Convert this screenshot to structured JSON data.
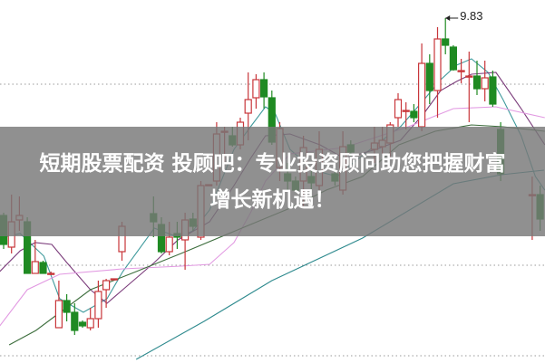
{
  "chart_data": {
    "type": "candlestick",
    "title": "",
    "xlabel": "",
    "ylabel": "",
    "ylim": [
      7.925,
      9.93
    ],
    "grid": "horizontal dotted",
    "colors": {
      "up": "#c8363a",
      "down": "#1f8a22",
      "grid": "#9a9a9a"
    },
    "candles": [
      {
        "i": 0,
        "o": 8.74,
        "h": 8.755,
        "l": 8.555,
        "c": 8.58
      },
      {
        "i": 1,
        "o": 8.565,
        "h": 8.855,
        "l": 8.53,
        "c": 8.705
      },
      {
        "i": 2,
        "o": 8.715,
        "h": 8.845,
        "l": 8.655,
        "c": 8.74
      },
      {
        "i": 3,
        "o": 8.705,
        "h": 8.73,
        "l": 8.42,
        "c": 8.42
      },
      {
        "i": 4,
        "o": 8.42,
        "h": 8.605,
        "l": 8.42,
        "c": 8.485
      },
      {
        "i": 5,
        "o": 8.48,
        "h": 8.49,
        "l": 8.42,
        "c": 8.42
      },
      {
        "i": 6,
        "o": 8.42,
        "h": 8.43,
        "l": 8.41,
        "c": 8.42
      },
      {
        "i": 7,
        "o": 8.12,
        "h": 8.38,
        "l": 8.12,
        "c": 8.27
      },
      {
        "i": 8,
        "o": 8.27,
        "h": 8.305,
        "l": 8.155,
        "c": 8.205
      },
      {
        "i": 9,
        "o": 8.205,
        "h": 8.255,
        "l": 8.08,
        "c": 8.105
      },
      {
        "i": 10,
        "o": 8.15,
        "h": 8.16,
        "l": 8.12,
        "c": 8.13
      },
      {
        "i": 11,
        "o": 8.12,
        "h": 8.23,
        "l": 8.105,
        "c": 8.17
      },
      {
        "i": 12,
        "o": 8.17,
        "h": 8.38,
        "l": 8.12,
        "c": 8.32
      },
      {
        "i": 13,
        "o": 8.33,
        "h": 8.39,
        "l": 8.23,
        "c": 8.38
      },
      {
        "i": 14,
        "o": 8.39,
        "h": 8.39,
        "l": 8.39,
        "c": 8.39
      },
      {
        "i": 15,
        "o": 8.54,
        "h": 8.705,
        "l": 8.49,
        "c": 8.68
      },
      {
        "i": 19,
        "o": 8.75,
        "h": 8.845,
        "l": 8.62,
        "c": 8.705
      },
      {
        "i": 20,
        "o": 8.69,
        "h": 8.73,
        "l": 8.53,
        "c": 8.54
      },
      {
        "i": 21,
        "o": 8.54,
        "h": 8.705,
        "l": 8.52,
        "c": 8.62
      },
      {
        "i": 22,
        "o": 8.64,
        "h": 8.705,
        "l": 8.555,
        "c": 8.62
      },
      {
        "i": 23,
        "o": 8.605,
        "h": 8.755,
        "l": 8.44,
        "c": 8.715
      },
      {
        "i": 24,
        "o": 8.72,
        "h": 8.755,
        "l": 8.655,
        "c": 8.68
      },
      {
        "i": 25,
        "o": 8.62,
        "h": 8.93,
        "l": 8.605,
        "c": 8.905
      },
      {
        "i": 26,
        "o": 8.91,
        "h": 8.91,
        "l": 8.91,
        "c": 8.91
      },
      {
        "i": 27,
        "o": 8.93,
        "h": 9.255,
        "l": 8.905,
        "c": 9.19
      },
      {
        "i": 28,
        "o": 9.205,
        "h": 9.23,
        "l": 9.03,
        "c": 9.205
      },
      {
        "i": 29,
        "o": 9.18,
        "h": 9.23,
        "l": 9.12,
        "c": 9.13
      },
      {
        "i": 30,
        "o": 9.13,
        "h": 9.28,
        "l": 9.105,
        "c": 9.255
      },
      {
        "i": 31,
        "o": 9.305,
        "h": 9.53,
        "l": 9.155,
        "c": 9.38
      },
      {
        "i": 32,
        "o": 9.39,
        "h": 9.52,
        "l": 9.33,
        "c": 9.49
      },
      {
        "i": 33,
        "o": 9.49,
        "h": 9.53,
        "l": 9.33,
        "c": 9.395
      },
      {
        "i": 34,
        "o": 9.39,
        "h": 9.43,
        "l": 9.13,
        "c": 9.145
      },
      {
        "i": 35,
        "o": 9.005,
        "h": 9.255,
        "l": 8.93,
        "c": 9.22
      },
      {
        "i": 36,
        "o": 8.97,
        "h": 9.03,
        "l": 8.88,
        "c": 8.93
      },
      {
        "i": 37,
        "o": 8.93,
        "h": 8.955,
        "l": 8.87,
        "c": 8.88
      },
      {
        "i": 38,
        "o": 8.93,
        "h": 9.18,
        "l": 8.78,
        "c": 9.115
      },
      {
        "i": 39,
        "o": 8.955,
        "h": 9.005,
        "l": 8.78,
        "c": 8.92
      },
      {
        "i": 40,
        "o": 8.905,
        "h": 9.205,
        "l": 8.88,
        "c": 9.105
      },
      {
        "i": 42,
        "o": 8.97,
        "h": 9.03,
        "l": 8.905,
        "c": 8.93
      },
      {
        "i": 43,
        "o": 8.88,
        "h": 9.205,
        "l": 8.855,
        "c": 9.12
      },
      {
        "i": 44,
        "o": 9.13,
        "h": 9.155,
        "l": 9.055,
        "c": 9.09
      },
      {
        "i": 47,
        "o": 9.105,
        "h": 9.23,
        "l": 9.03,
        "c": 9.14
      },
      {
        "i": 48,
        "o": 9.12,
        "h": 9.23,
        "l": 9.08,
        "c": 9.155
      },
      {
        "i": 49,
        "o": 9.14,
        "h": 9.255,
        "l": 9.055,
        "c": 9.24
      },
      {
        "i": 50,
        "o": 9.28,
        "h": 9.415,
        "l": 9.23,
        "c": 9.38
      },
      {
        "i": 51,
        "o": 9.32,
        "h": 9.365,
        "l": 9.215,
        "c": 9.32
      },
      {
        "i": 52,
        "o": 9.315,
        "h": 9.355,
        "l": 9.255,
        "c": 9.28
      },
      {
        "i": 53,
        "o": 9.23,
        "h": 9.69,
        "l": 9.205,
        "c": 9.58
      },
      {
        "i": 54,
        "o": 9.58,
        "h": 9.63,
        "l": 9.355,
        "c": 9.43
      },
      {
        "i": 55,
        "o": 9.43,
        "h": 9.78,
        "l": 9.28,
        "c": 9.715
      },
      {
        "i": 56,
        "o": 9.715,
        "h": 9.83,
        "l": 9.63,
        "c": 9.68
      },
      {
        "i": 57,
        "o": 9.67,
        "h": 9.68,
        "l": 9.54,
        "c": 9.545
      },
      {
        "i": 58,
        "o": 9.54,
        "h": 9.605,
        "l": 9.47,
        "c": 9.54
      },
      {
        "i": 59,
        "o": 9.51,
        "h": 9.645,
        "l": 9.255,
        "c": 9.51
      },
      {
        "i": 60,
        "o": 9.51,
        "h": 9.595,
        "l": 9.405,
        "c": 9.44
      },
      {
        "i": 61,
        "o": 9.44,
        "h": 9.595,
        "l": 9.37,
        "c": 9.5
      },
      {
        "i": 62,
        "o": 9.505,
        "h": 9.54,
        "l": 9.34,
        "c": 9.355
      },
      {
        "i": 63,
        "o": 9.215,
        "h": 9.255,
        "l": 8.93,
        "c": 8.97
      },
      {
        "i": 67,
        "o": 8.855,
        "h": 8.955,
        "l": 8.605,
        "c": 8.855
      },
      {
        "i": 68,
        "o": 8.855,
        "h": 8.905,
        "l": 8.655,
        "c": 8.72
      }
    ],
    "moving_averages": [
      {
        "color": "#3f9a9c",
        "points": [
          [
            0,
            8.62
          ],
          [
            2.1,
            8.64
          ],
          [
            5.1,
            8.515
          ],
          [
            7.1,
            8.28
          ],
          [
            10.1,
            8.205
          ],
          [
            13.1,
            8.28
          ],
          [
            15.1,
            8.43
          ],
          [
            19.1,
            8.67
          ],
          [
            22.1,
            8.62
          ],
          [
            24,
            8.655
          ],
          [
            26.1,
            8.77
          ],
          [
            29.2,
            9.105
          ],
          [
            31.3,
            9.23
          ],
          [
            33.2,
            9.34
          ],
          [
            34.4,
            9.305
          ],
          [
            36.3,
            9.105
          ],
          [
            39.3,
            8.99
          ],
          [
            42.3,
            8.955
          ],
          [
            44.3,
            9.03
          ],
          [
            47.2,
            9.13
          ],
          [
            50.3,
            9.23
          ],
          [
            53.3,
            9.38
          ],
          [
            55.4,
            9.49
          ],
          [
            57.4,
            9.57
          ],
          [
            59.3,
            9.605
          ],
          [
            61.4,
            9.53
          ],
          [
            63.3,
            9.38
          ],
          [
            65.6,
            9.18
          ],
          [
            67.4,
            8.955
          ],
          [
            68.6,
            8.88
          ]
        ]
      },
      {
        "color": "#7b3c7b",
        "points": [
          [
            -0.5,
            8.43
          ],
          [
            2.1,
            8.545
          ],
          [
            4,
            8.59
          ],
          [
            6.1,
            8.58
          ],
          [
            8,
            8.48
          ],
          [
            11,
            8.33
          ],
          [
            13.1,
            8.255
          ],
          [
            15.1,
            8.33
          ],
          [
            19.1,
            8.48
          ],
          [
            22.1,
            8.605
          ],
          [
            26.1,
            8.705
          ],
          [
            29.2,
            8.905
          ],
          [
            31.3,
            9.055
          ],
          [
            33.2,
            9.18
          ],
          [
            36.3,
            9.19
          ],
          [
            40.1,
            9.13
          ],
          [
            43.2,
            9.055
          ],
          [
            47.2,
            9.105
          ],
          [
            50.3,
            9.155
          ],
          [
            53.3,
            9.305
          ],
          [
            55.4,
            9.43
          ],
          [
            57.4,
            9.48
          ],
          [
            59.3,
            9.52
          ],
          [
            62.4,
            9.53
          ],
          [
            65.6,
            9.33
          ],
          [
            68.6,
            9.13
          ]
        ]
      },
      {
        "color": "#e29ae2",
        "points": [
          [
            -0.5,
            8.13
          ],
          [
            3,
            8.33
          ],
          [
            7.1,
            8.415
          ],
          [
            15.1,
            8.445
          ],
          [
            22.5,
            8.46
          ],
          [
            26.1,
            8.47
          ],
          [
            29.2,
            8.59
          ],
          [
            31.3,
            8.755
          ],
          [
            33.2,
            8.93
          ],
          [
            36.3,
            9.08
          ],
          [
            43.2,
            9.115
          ],
          [
            51.3,
            9.23
          ],
          [
            57,
            9.33
          ],
          [
            62.4,
            9.34
          ],
          [
            68.6,
            9.28
          ]
        ]
      },
      {
        "color": "#3d6e3d",
        "points": [
          [
            0.7,
            8.025
          ],
          [
            4.1,
            8.105
          ],
          [
            11,
            8.33
          ],
          [
            16.8,
            8.43
          ],
          [
            22.5,
            8.53
          ],
          [
            31.3,
            8.69
          ],
          [
            36.3,
            8.78
          ],
          [
            40.9,
            8.88
          ],
          [
            45.5,
            8.955
          ],
          [
            50.1,
            9.13
          ],
          [
            54.7,
            9.205
          ],
          [
            59.3,
            9.24
          ],
          [
            63.3,
            9.23
          ],
          [
            68.6,
            9.205
          ]
        ]
      },
      {
        "color": "#2e8a8e",
        "points": [
          [
            16.8,
            7.945
          ],
          [
            25.4,
            8.155
          ],
          [
            34,
            8.38
          ],
          [
            45.5,
            8.615
          ],
          [
            57,
            8.915
          ],
          [
            63.1,
            8.965
          ],
          [
            68.5,
            8.99
          ]
        ]
      }
    ],
    "annotations": [
      {
        "text": "9.83",
        "candle": 56,
        "price": 9.83
      }
    ]
  },
  "banner": {
    "lines": [
      "短期股票配资 投顾吧：专业投资顾问助您把握财富",
      "增长新机遇！"
    ]
  }
}
